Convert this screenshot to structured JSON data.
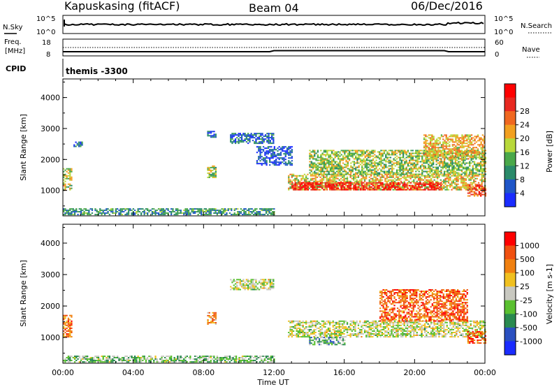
{
  "header": {
    "title": "Kapuskasing (fitACF)",
    "beam": "Beam 04",
    "date": "06/Dec/2016"
  },
  "top_strips": {
    "nsky_label": "N.Sky",
    "nsky_ticks": [
      "10^5",
      "10^0"
    ],
    "nsearch_label": "N.Search",
    "nsearch_ticks": [
      "10^5",
      "10^0"
    ],
    "freq_label_line1": "Freq.",
    "freq_label_line2": "[MHz]",
    "freq_ticks": [
      "18",
      "8"
    ],
    "nave_label": "Nave",
    "nave_ticks": [
      "60",
      "0"
    ],
    "cpid_label": "CPID",
    "cpid_value": "themis -3300"
  },
  "chart_data": [
    {
      "type": "heatmap",
      "name": "power",
      "ylabel": "Slant Range [km]",
      "ylim": [
        180,
        4600
      ],
      "yticks": [
        "1000",
        "2000",
        "3000",
        "4000"
      ],
      "xlim": [
        0,
        24
      ],
      "xticks": [
        "00:00",
        "04:00",
        "08:00",
        "12:00",
        "16:00",
        "20:00",
        "00:00"
      ],
      "colorbar": {
        "label": "Power [dB]",
        "ticks": [
          "4",
          "8",
          "12",
          "16",
          "20",
          "24",
          "28"
        ],
        "colors": [
          "#1a2cff",
          "#1f56c8",
          "#2a8a6a",
          "#4aa84a",
          "#b8d83a",
          "#f2a020",
          "#f06820",
          "#e82820",
          "#ff0000"
        ]
      },
      "echo_regions": [
        {
          "t0": 0.0,
          "t1": 0.5,
          "r0": 1000,
          "r1": 1700,
          "level": 0.5
        },
        {
          "t0": 0.0,
          "t1": 12.0,
          "r0": 200,
          "r1": 420,
          "level": 0.3
        },
        {
          "t0": 0.6,
          "t1": 1.1,
          "r0": 2400,
          "r1": 2550,
          "level": 0.2
        },
        {
          "t0": 8.2,
          "t1": 8.7,
          "r0": 1400,
          "r1": 1800,
          "level": 0.45
        },
        {
          "t0": 8.2,
          "t1": 8.7,
          "r0": 2700,
          "r1": 2900,
          "level": 0.15
        },
        {
          "t0": 9.5,
          "t1": 12.0,
          "r0": 2500,
          "r1": 2850,
          "level": 0.2
        },
        {
          "t0": 11.0,
          "t1": 13.0,
          "r0": 1800,
          "r1": 2400,
          "level": 0.15
        },
        {
          "t0": 12.8,
          "t1": 24.0,
          "r0": 1000,
          "r1": 1500,
          "level": 0.55
        },
        {
          "t0": 13.0,
          "t1": 21.5,
          "r0": 1000,
          "r1": 1250,
          "level": 0.9
        },
        {
          "t0": 14.0,
          "t1": 24.0,
          "r0": 1500,
          "r1": 2300,
          "level": 0.45
        },
        {
          "t0": 20.5,
          "t1": 24.0,
          "r0": 2000,
          "r1": 2800,
          "level": 0.6
        },
        {
          "t0": 23.0,
          "t1": 24.0,
          "r0": 800,
          "r1": 1200,
          "level": 0.75
        }
      ]
    },
    {
      "type": "heatmap",
      "name": "velocity",
      "ylabel": "Slant Range [km]",
      "ylim": [
        180,
        4600
      ],
      "yticks": [
        "1000",
        "2000",
        "3000",
        "4000"
      ],
      "xlim": [
        0,
        24
      ],
      "xticks": [
        "00:00",
        "04:00",
        "08:00",
        "12:00",
        "16:00",
        "20:00",
        "00:00"
      ],
      "xlabel": "Time UT",
      "colorbar": {
        "label": "Velocity [m s-1]",
        "ticks": [
          "1000",
          "500",
          "100",
          "25",
          "-25",
          "-100",
          "-500",
          "-1000"
        ],
        "colors": [
          "#1a2cff",
          "#2a50c0",
          "#2a8a50",
          "#5ac030",
          "#c8c8c0",
          "#f0c020",
          "#f08010",
          "#f05010",
          "#ff0000"
        ]
      },
      "echo_regions": [
        {
          "t0": 0.0,
          "t1": 0.5,
          "r0": 1000,
          "r1": 1700,
          "level": 0.75
        },
        {
          "t0": 0.0,
          "t1": 12.0,
          "r0": 200,
          "r1": 420,
          "level": 0.4
        },
        {
          "t0": 8.2,
          "t1": 8.7,
          "r0": 1400,
          "r1": 1800,
          "level": 0.7
        },
        {
          "t0": 9.5,
          "t1": 12.0,
          "r0": 2500,
          "r1": 2850,
          "level": 0.5
        },
        {
          "t0": 12.8,
          "t1": 24.0,
          "r0": 1000,
          "r1": 1500,
          "level": 0.5
        },
        {
          "t0": 14.0,
          "t1": 16.0,
          "r0": 750,
          "r1": 1000,
          "level": 0.35
        },
        {
          "t0": 18.0,
          "t1": 23.0,
          "r0": 1500,
          "r1": 2500,
          "level": 0.8
        },
        {
          "t0": 23.0,
          "t1": 24.0,
          "r0": 800,
          "r1": 1200,
          "level": 0.8
        }
      ]
    }
  ]
}
